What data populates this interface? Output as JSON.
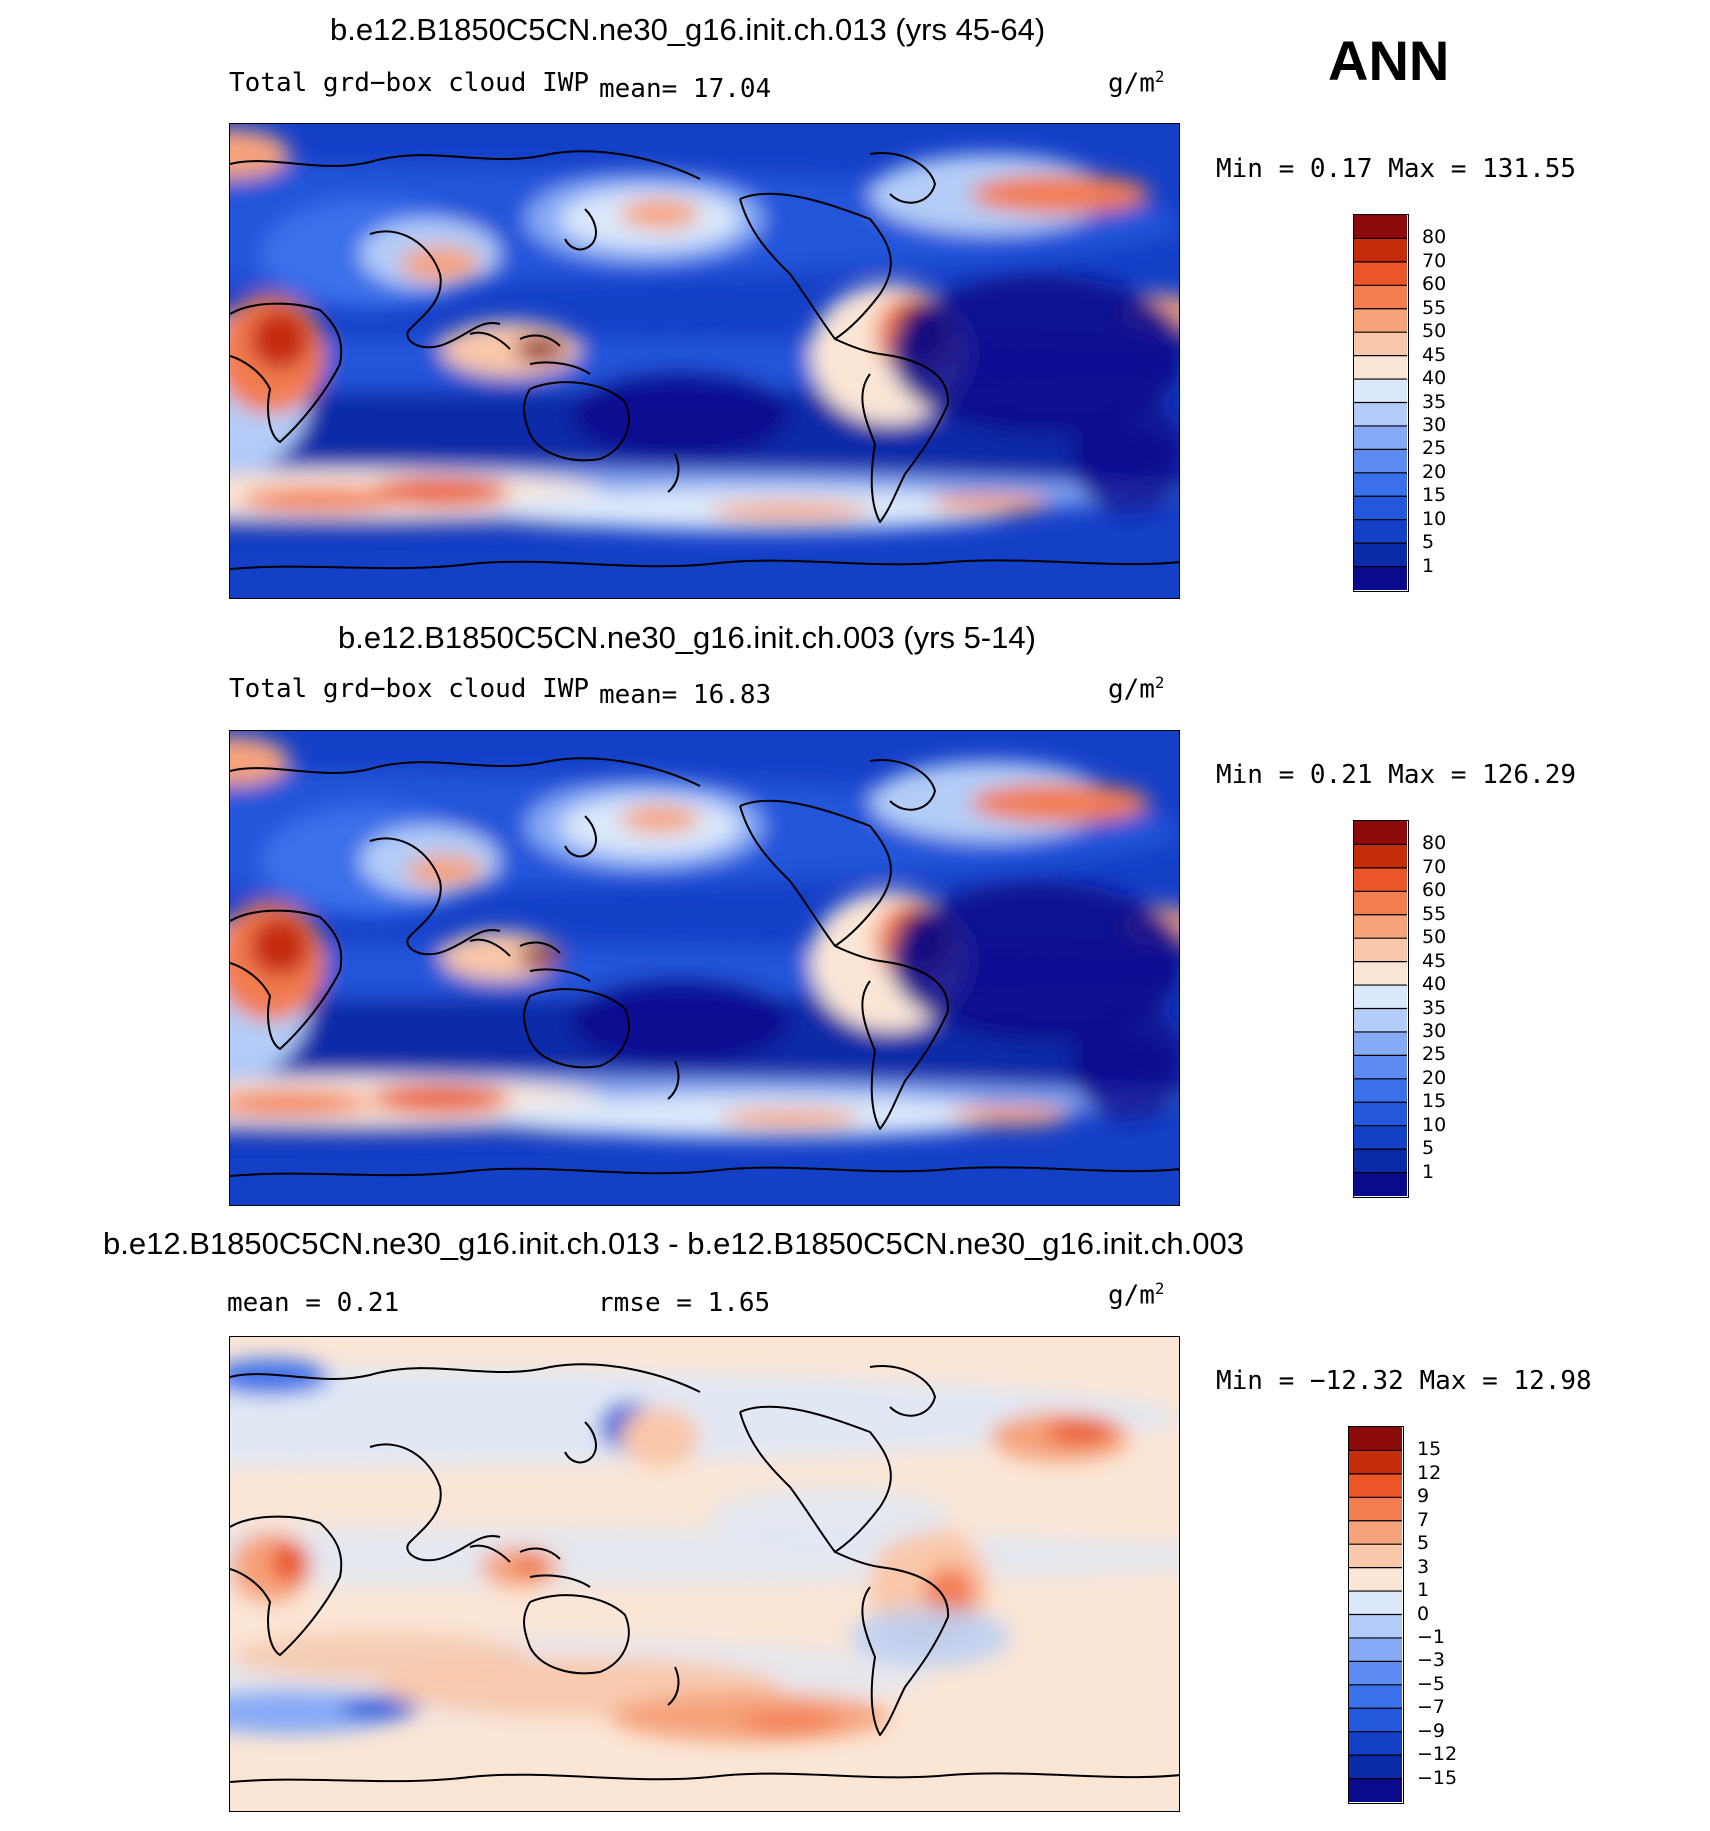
{
  "season": "ANN",
  "panels": [
    {
      "title": "b.e12.B1850C5CN.ne30_g16.init.ch.013 (yrs 45-64)",
      "left_text": "Total grd−box cloud IWP",
      "mean_text": "mean=   17.04",
      "units": "g/m",
      "units_exp": "2",
      "minmax": "Min =    0.17 Max = 131.55"
    },
    {
      "title": "b.e12.B1850C5CN.ne30_g16.init.ch.003 (yrs 5-14)",
      "left_text": "Total grd−box cloud IWP",
      "mean_text": "mean=   16.83",
      "units": "g/m",
      "units_exp": "2",
      "minmax": "Min =    0.21 Max = 126.29"
    },
    {
      "title": "b.e12.B1850C5CN.ne30_g16.init.ch.013 - b.e12.B1850C5CN.ne30_g16.init.ch.003",
      "left_text": "mean =    0.21",
      "mean_text": "rmse =    1.65",
      "units": "g/m",
      "units_exp": "2",
      "minmax": "Min = −12.32 Max =   12.98"
    }
  ],
  "chart_data": [
    {
      "type": "heatmap",
      "title": "b.e12.B1850C5CN.ne30_g16.init.ch.013 (yrs 45-64)",
      "variable": "Total grd-box cloud IWP",
      "units": "g/m2",
      "mean": 17.04,
      "min": 0.17,
      "max": 131.55,
      "contour_levels": [
        1,
        5,
        10,
        15,
        20,
        25,
        30,
        35,
        40,
        45,
        50,
        55,
        60,
        70,
        80
      ],
      "colors": [
        "#0a0a8c",
        "#0a2aa8",
        "#1440c8",
        "#2458dc",
        "#3a70ea",
        "#5c8cf2",
        "#86aaf6",
        "#b4cdf8",
        "#dbe8fb",
        "#fbe6d6",
        "#f9c7a9",
        "#f6a37c",
        "#f37c50",
        "#ea5628",
        "#c42c0c",
        "#8c0a0a"
      ]
    },
    {
      "type": "heatmap",
      "title": "b.e12.B1850C5CN.ne30_g16.init.ch.003 (yrs 5-14)",
      "variable": "Total grd-box cloud IWP",
      "units": "g/m2",
      "mean": 16.83,
      "min": 0.21,
      "max": 126.29,
      "contour_levels": [
        1,
        5,
        10,
        15,
        20,
        25,
        30,
        35,
        40,
        45,
        50,
        55,
        60,
        70,
        80
      ],
      "colors": [
        "#0a0a8c",
        "#0a2aa8",
        "#1440c8",
        "#2458dc",
        "#3a70ea",
        "#5c8cf2",
        "#86aaf6",
        "#b4cdf8",
        "#dbe8fb",
        "#fbe6d6",
        "#f9c7a9",
        "#f6a37c",
        "#f37c50",
        "#ea5628",
        "#c42c0c",
        "#8c0a0a"
      ]
    },
    {
      "type": "heatmap",
      "title": "b.e12.B1850C5CN.ne30_g16.init.ch.013 - b.e12.B1850C5CN.ne30_g16.init.ch.003",
      "units": "g/m2",
      "mean": 0.21,
      "rmse": 1.65,
      "min": -12.32,
      "max": 12.98,
      "contour_levels": [
        -15,
        -12,
        -9,
        -7,
        -5,
        -3,
        -1,
        0,
        1,
        3,
        5,
        7,
        9,
        12,
        15
      ],
      "colors": [
        "#0a0a8c",
        "#0a2aa8",
        "#1440c8",
        "#2458dc",
        "#3a70ea",
        "#5c8cf2",
        "#86aaf6",
        "#b4cdf8",
        "#dbe8fb",
        "#fbe6d6",
        "#f9c7a9",
        "#f6a37c",
        "#f37c50",
        "#ea5628",
        "#c42c0c",
        "#8c0a0a"
      ]
    }
  ]
}
